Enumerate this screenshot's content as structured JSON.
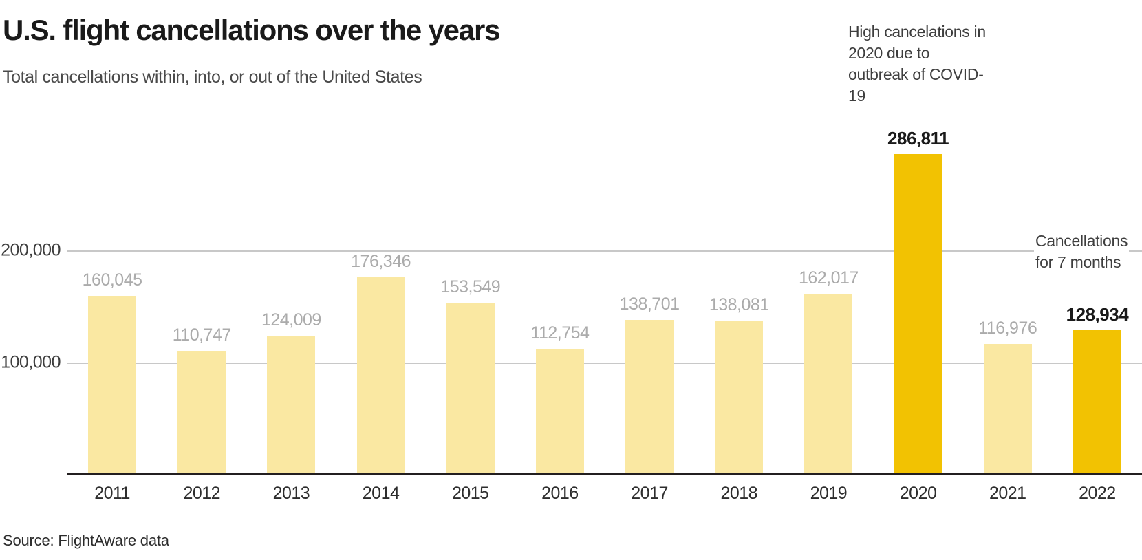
{
  "header": {
    "title": "U.S. flight cancellations over the years",
    "subtitle": "Total cancellations within, into, or out of the United States"
  },
  "annotations": {
    "covid": {
      "lines": [
        "High cancelations in",
        "2020 due to",
        "outbreak of COVID-",
        "19"
      ]
    },
    "partial_year": {
      "lines": [
        "Cancellations",
        "for 7 months"
      ]
    }
  },
  "footer": {
    "source": "Source: FlightAware data"
  },
  "colors": {
    "bar_default": "#FAE8A2",
    "bar_highlight": "#F2C202",
    "value_label_default": "#ABABAB",
    "value_label_highlight": "#1A1A1A",
    "gridline": "#C8C8C8",
    "axis": "#231F20"
  },
  "chart_data": {
    "type": "bar",
    "title": "U.S. flight cancellations over the years",
    "subtitle": "Total cancellations within, into, or out of the United States",
    "categories": [
      "2011",
      "2012",
      "2013",
      "2014",
      "2015",
      "2016",
      "2017",
      "2018",
      "2019",
      "2020",
      "2021",
      "2022"
    ],
    "values": [
      160045,
      110747,
      124009,
      176346,
      153549,
      112754,
      138701,
      138081,
      162017,
      286811,
      116976,
      128934
    ],
    "value_labels": [
      "160,045",
      "110,747",
      "124,009",
      "176,346",
      "153,549",
      "112,754",
      "138,701",
      "138,081",
      "162,017",
      "286,811",
      "116,976",
      "128,934"
    ],
    "highlight_indices": [
      9,
      11
    ],
    "highlight_note": "High cancelations in 2020 due to outbreak of COVID-19",
    "partial_year_note": "Cancellations for 7 months",
    "yticks": [
      {
        "value": 200000,
        "label": "200,000"
      },
      {
        "value": 100000,
        "label": "100,000"
      }
    ],
    "ylim": [
      0,
      300000
    ],
    "grid": "horizontal",
    "legend": "none",
    "xlabel": "",
    "ylabel": ""
  }
}
